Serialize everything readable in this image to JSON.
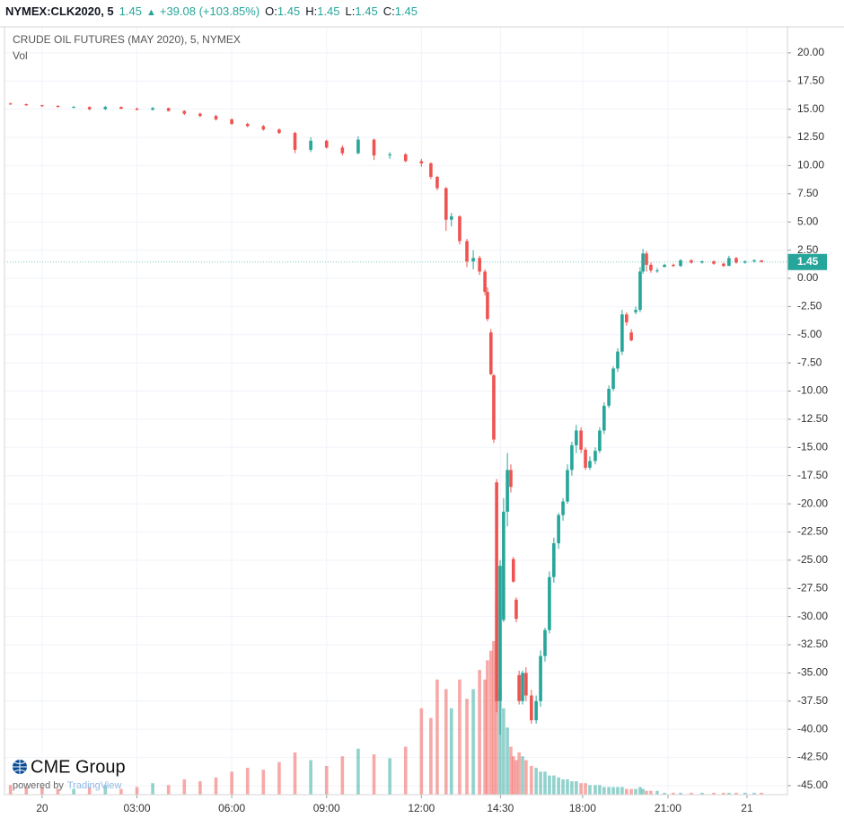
{
  "header": {
    "symbol": "NYMEX:CLK2020, 5",
    "last": "1.45",
    "arrow": "▲",
    "change": "+39.08 (+103.85%)",
    "ohlc": [
      {
        "label": "O:",
        "value": "1.45"
      },
      {
        "label": "H:",
        "value": "1.45"
      },
      {
        "label": "L:",
        "value": "1.45"
      },
      {
        "label": "C:",
        "value": "1.45"
      }
    ]
  },
  "branding": {
    "logo": "CME Group",
    "powered_by": "powered by",
    "provider": "TradingView"
  },
  "chart_data": {
    "type": "candlestick",
    "title": "CRUDE OIL FUTURES (MAY 2020), 5, NYMEX",
    "subtitle": "Vol",
    "up_color": "#26a69a",
    "down_color": "#ef5350",
    "grid": true,
    "last_price": 1.45,
    "x": [
      -1.0,
      -0.5,
      0,
      0.5,
      1.0,
      1.5,
      2.0,
      2.5,
      3.0,
      3.5,
      4.0,
      4.5,
      5.0,
      5.5,
      6.0,
      6.5,
      7.0,
      7.5,
      8.0,
      8.5,
      9.0,
      9.5,
      10.0,
      10.5,
      11.0,
      11.5,
      12.0,
      12.3,
      12.5,
      12.78,
      12.95,
      13.21,
      13.44,
      13.64,
      13.84,
      14.01,
      14.09,
      14.2,
      14.29,
      14.38,
      14.49,
      14.6,
      14.72,
      14.83,
      14.91,
      15.0,
      15.09,
      15.2,
      15.31,
      15.48,
      15.63,
      15.77,
      15.91,
      16.05,
      16.19,
      16.34,
      16.48,
      16.62,
      16.76,
      16.9,
      17.05,
      17.19,
      17.33,
      17.5,
      17.64,
      17.78,
      17.93,
      18.07,
      18.21,
      18.35,
      18.49,
      18.64,
      18.78,
      18.92,
      19.01,
      19.12,
      19.26,
      19.46,
      19.69,
      19.97,
      20.2,
      20.54,
      20.88,
      21.25,
      21.56,
      21.73,
      21.96,
      22.24,
      22.53,
      22.76
    ],
    "open": [
      15.5,
      15.45,
      15.35,
      15.3,
      15.2,
      15.2,
      15.0,
      15.2,
      15.05,
      14.95,
      15.1,
      14.85,
      14.6,
      14.4,
      14.1,
      13.7,
      13.5,
      13.2,
      12.9,
      11.4,
      12.2,
      11.6,
      11.1,
      12.3,
      10.9,
      11.0,
      10.4,
      10.2,
      9.0,
      8.0,
      5.2,
      5.5,
      3.3,
      1.5,
      1.8,
      0.6,
      -1.2,
      -4.8,
      -8.6,
      -18.1,
      -37.5,
      -30.3,
      -20.7,
      -17.0,
      -24.9,
      -28.5,
      -35.2,
      -37.5,
      -35.0,
      -37.0,
      -39.2,
      -37.5,
      -33.5,
      -31.2,
      -26.5,
      -23.5,
      -21.0,
      -19.8,
      -17.0,
      -14.8,
      -13.5,
      -15.2,
      -16.8,
      -16.2,
      -15.3,
      -13.5,
      -11.3,
      -9.8,
      -8.0,
      -6.5,
      -3.2,
      -4.8,
      -3.0,
      -2.8,
      0.6,
      2.2,
      1.2,
      0.7,
      1.0,
      1.2,
      1.1,
      1.6,
      1.4,
      1.5,
      1.3,
      1.1,
      1.8,
      1.4,
      1.5,
      1.6
    ],
    "high": [
      15.6,
      15.5,
      15.4,
      15.35,
      15.3,
      15.25,
      15.3,
      15.25,
      15.15,
      15.2,
      15.15,
      14.9,
      14.7,
      14.5,
      14.2,
      13.8,
      13.6,
      13.3,
      13.0,
      12.5,
      12.3,
      11.8,
      12.6,
      12.4,
      11.2,
      11.1,
      10.6,
      10.3,
      9.1,
      8.1,
      5.8,
      5.6,
      3.5,
      2.5,
      2.0,
      0.8,
      -0.8,
      -4.5,
      -8.5,
      -17.8,
      -25,
      -19.5,
      -15.5,
      -16.5,
      -24.7,
      -28.3,
      -34.8,
      -34.8,
      -34.5,
      -36.5,
      -37,
      -33,
      -31.0,
      -26,
      -23,
      -20.8,
      -19.5,
      -16.5,
      -14.5,
      -13,
      -13.2,
      -15,
      -15.8,
      -15.0,
      -13.2,
      -11.0,
      -9.5,
      -7.8,
      -6.2,
      -2.8,
      -3.0,
      -4.5,
      -2.5,
      1.0,
      2.6,
      2.4,
      1.4,
      0.9,
      1.3,
      1.3,
      1.7,
      1.7,
      1.6,
      1.6,
      1.4,
      2.0,
      1.9,
      1.6,
      1.7,
      1.6
    ],
    "low": [
      15.4,
      15.3,
      15.2,
      15.15,
      15.1,
      14.9,
      14.95,
      15.0,
      14.9,
      14.9,
      14.8,
      14.5,
      14.3,
      14.0,
      13.6,
      13.4,
      13.1,
      12.8,
      11.1,
      11.2,
      11.5,
      10.9,
      11.0,
      10.5,
      10.6,
      10.3,
      9.9,
      8.8,
      7.8,
      4.2,
      4.6,
      3.0,
      1.0,
      0.8,
      0.3,
      -1.5,
      -3.8,
      -8.6,
      -14.6,
      -38.5,
      -40.5,
      -30.5,
      -22,
      -19,
      -27,
      -30.5,
      -37.8,
      -37.8,
      -37.5,
      -39.5,
      -39.5,
      -38,
      -34,
      -31.5,
      -27,
      -24,
      -21.5,
      -20,
      -17.5,
      -15.5,
      -15.5,
      -17,
      -17,
      -16.5,
      -15.5,
      -13.8,
      -11.5,
      -10.0,
      -8.3,
      -6.8,
      -4.2,
      -5.6,
      -3.2,
      -3.0,
      0.4,
      0.6,
      0.5,
      0.5,
      1.0,
      1.0,
      1.0,
      1.3,
      1.3,
      1.2,
      1.0,
      1.1,
      1.3,
      1.3,
      1.4,
      1.4
    ],
    "close": [
      15.45,
      15.35,
      15.3,
      15.2,
      15.2,
      15.0,
      15.2,
      15.05,
      14.95,
      15.1,
      14.85,
      14.6,
      14.4,
      14.1,
      13.7,
      13.5,
      13.2,
      12.9,
      11.4,
      12.2,
      11.6,
      11.1,
      12.3,
      10.9,
      11.0,
      10.4,
      10.2,
      9.0,
      8.0,
      5.2,
      5.5,
      3.3,
      1.5,
      1.8,
      0.6,
      -1.2,
      -3.6,
      -8.5,
      -14.3,
      -37.5,
      -25.5,
      -20.7,
      -17.0,
      -18.5,
      -26.9,
      -30.2,
      -37.5,
      -35.0,
      -37.0,
      -39.2,
      -37.5,
      -33.5,
      -31.2,
      -26.5,
      -23.5,
      -21.0,
      -19.8,
      -17.0,
      -14.8,
      -13.5,
      -15.2,
      -16.8,
      -16.2,
      -15.3,
      -13.5,
      -11.3,
      -9.8,
      -8.0,
      -6.5,
      -3.2,
      -3.9,
      -5.5,
      -2.8,
      0.6,
      2.2,
      1.2,
      0.7,
      0.7,
      1.2,
      1.1,
      1.6,
      1.4,
      1.5,
      1.3,
      1.1,
      1.8,
      1.4,
      1.5,
      1.6,
      1.45
    ],
    "volume": [
      5,
      4,
      4,
      3,
      3,
      4,
      5,
      3,
      4,
      6,
      5,
      8,
      7,
      9,
      12,
      14,
      13,
      17,
      22,
      18,
      15,
      20,
      24,
      21,
      19,
      25,
      45,
      40,
      60,
      55,
      45,
      60,
      50,
      55,
      65,
      60,
      70,
      75,
      80,
      100,
      55,
      45,
      35,
      25,
      20,
      18,
      22,
      20,
      18,
      15,
      14,
      12,
      12,
      10,
      10,
      9,
      8,
      8,
      7,
      7,
      6,
      6,
      5,
      5,
      5,
      4,
      4,
      4,
      4,
      4,
      3,
      3,
      3,
      4,
      3,
      2,
      2,
      2,
      1,
      1,
      1,
      1,
      1,
      1,
      1,
      1,
      1,
      1,
      1,
      1
    ],
    "xlim": [
      -1.19,
      23.58
    ],
    "xticks": [
      {
        "value": 0,
        "label": "20"
      },
      {
        "value": 3,
        "label": "03:00"
      },
      {
        "value": 6,
        "label": "06:00"
      },
      {
        "value": 9,
        "label": "09:00"
      },
      {
        "value": 12,
        "label": "12:00"
      },
      {
        "value": 14.5,
        "label": "14:30"
      },
      {
        "value": 17.1,
        "label": "18:00"
      },
      {
        "value": 19.8,
        "label": "21:00"
      },
      {
        "value": 22.3,
        "label": "21"
      }
    ],
    "ylim": [
      -45.8,
      22.3
    ],
    "yticks": [
      {
        "value": 20,
        "label": "20.00"
      },
      {
        "value": 17.5,
        "label": "17.50"
      },
      {
        "value": 15,
        "label": "15.00"
      },
      {
        "value": 12.5,
        "label": "12.50"
      },
      {
        "value": 10,
        "label": "10.00"
      },
      {
        "value": 7.5,
        "label": "7.50"
      },
      {
        "value": 5,
        "label": "5.00"
      },
      {
        "value": 2.5,
        "label": "2.50"
      },
      {
        "value": 0,
        "label": "0.00"
      },
      {
        "value": -2.5,
        "label": "-2.50"
      },
      {
        "value": -5,
        "label": "-5.00"
      },
      {
        "value": -7.5,
        "label": "-7.50"
      },
      {
        "value": -10,
        "label": "-10.00"
      },
      {
        "value": -12.5,
        "label": "-12.50"
      },
      {
        "value": -15,
        "label": "-15.00"
      },
      {
        "value": -17.5,
        "label": "-17.50"
      },
      {
        "value": -20,
        "label": "-20.00"
      },
      {
        "value": -22.5,
        "label": "-22.50"
      },
      {
        "value": -25,
        "label": "-25.00"
      },
      {
        "value": -27.5,
        "label": "-27.50"
      },
      {
        "value": -30,
        "label": "-30.00"
      },
      {
        "value": -32.5,
        "label": "-32.50"
      },
      {
        "value": -35,
        "label": "-35.00"
      },
      {
        "value": -37.5,
        "label": "-37.50"
      },
      {
        "value": -40,
        "label": "-40.00"
      },
      {
        "value": -42.5,
        "label": "-42.50"
      },
      {
        "value": -45,
        "label": "-45.00"
      }
    ]
  }
}
